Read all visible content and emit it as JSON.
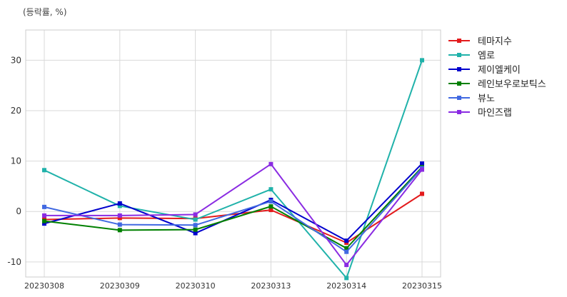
{
  "chart_data": {
    "type": "line",
    "unit_label": "(등락률, %)",
    "categories": [
      "20230308",
      "20230309",
      "20230310",
      "20230313",
      "20230314",
      "20230315"
    ],
    "ylim": [
      -13,
      36
    ],
    "yticks": [
      -10,
      0,
      10,
      20,
      30
    ],
    "grid": true,
    "legend_position": "right",
    "series": [
      {
        "name": "테마지수",
        "color": "#e31a1c",
        "values": [
          -1.6,
          -1.3,
          -1.4,
          0.3,
          -6.2,
          3.5
        ]
      },
      {
        "name": "엠로",
        "color": "#20b2aa",
        "values": [
          8.2,
          1.1,
          -1.6,
          4.4,
          -13.2,
          30.0
        ]
      },
      {
        "name": "제이엘케이",
        "color": "#0000cd",
        "values": [
          -2.4,
          1.6,
          -4.3,
          2.3,
          -5.8,
          9.5
        ]
      },
      {
        "name": "레인보우로보틱스",
        "color": "#008000",
        "values": [
          -1.9,
          -3.7,
          -3.6,
          1.0,
          -7.3,
          8.8
        ]
      },
      {
        "name": "뷰노",
        "color": "#4169e1",
        "values": [
          0.9,
          -2.6,
          -2.7,
          2.0,
          -8.0,
          8.6
        ]
      },
      {
        "name": "마인즈랩",
        "color": "#8a2be2",
        "values": [
          -0.8,
          -0.8,
          -0.6,
          9.4,
          -10.6,
          8.3
        ]
      }
    ]
  }
}
